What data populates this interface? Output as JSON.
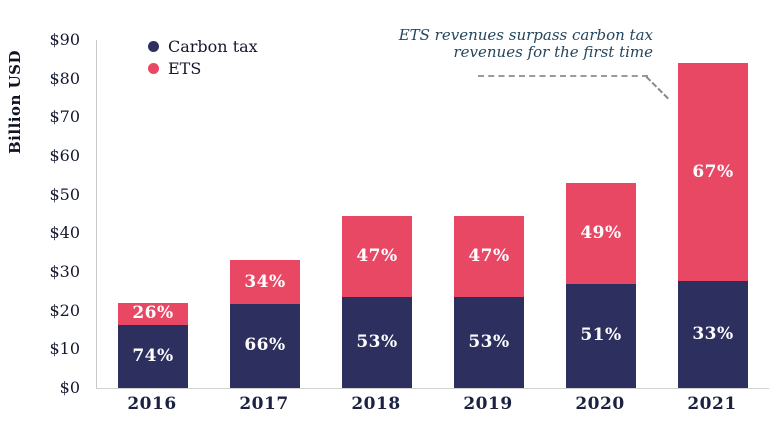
{
  "legend": {
    "items": [
      {
        "label": "Carbon tax",
        "color": "#2d2f5e"
      },
      {
        "label": "ETS",
        "color": "#e84864"
      }
    ]
  },
  "annotation": {
    "line1": "ETS revenues surpass carbon tax",
    "line2": "revenues for the first time"
  },
  "colors": {
    "carbon_tax": "#2d2f5e",
    "ets": "#e84864",
    "axis_line": "#c8c8c8",
    "tick_text": "#14182e",
    "annotation_text": "#24465e"
  },
  "chart_data": {
    "type": "bar",
    "stacked": true,
    "title": "",
    "xlabel": "",
    "ylabel": "Billion USD",
    "ylim": [
      0,
      90
    ],
    "grid": false,
    "legend_position": "top-left",
    "categories": [
      "2016",
      "2017",
      "2018",
      "2019",
      "2020",
      "2021"
    ],
    "series": [
      {
        "name": "Carbon tax",
        "color": "#2d2f5e",
        "values": [
          16.3,
          21.8,
          23.6,
          23.6,
          27,
          27.7
        ],
        "percent_labels": [
          "74%",
          "66%",
          "53%",
          "53%",
          "51%",
          "33%"
        ]
      },
      {
        "name": "ETS",
        "color": "#e84864",
        "values": [
          5.7,
          11.2,
          20.9,
          20.9,
          26,
          56.3
        ],
        "percent_labels": [
          "26%",
          "34%",
          "47%",
          "47%",
          "49%",
          "67%"
        ]
      }
    ],
    "totals": [
      22,
      33,
      44.5,
      44.5,
      53,
      84
    ],
    "yticks": [
      {
        "value": 0,
        "label": "$0"
      },
      {
        "value": 10,
        "label": "$10"
      },
      {
        "value": 20,
        "label": "$20"
      },
      {
        "value": 30,
        "label": "$30"
      },
      {
        "value": 40,
        "label": "$40"
      },
      {
        "value": 50,
        "label": "$50"
      },
      {
        "value": 60,
        "label": "$60"
      },
      {
        "value": 70,
        "label": "$70"
      },
      {
        "value": 80,
        "label": "$80"
      },
      {
        "value": 90,
        "label": "$90"
      }
    ],
    "annotation": "ETS revenues surpass carbon tax revenues for the first time"
  }
}
